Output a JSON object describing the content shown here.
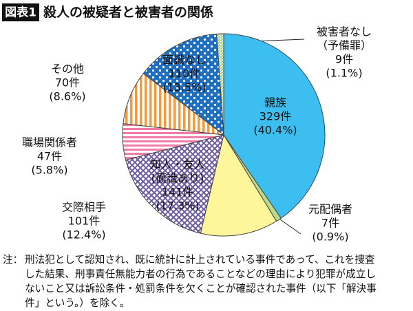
{
  "chart_data": {
    "type": "pie",
    "badge": "図表1",
    "title": "殺人の被疑者と被害者の関係",
    "categories": [
      [
        "親族"
      ],
      [
        "元配偶者"
      ],
      [
        "交際相手"
      ],
      [
        "知人・友人",
        "(面識あり)"
      ],
      [
        "職場関係者"
      ],
      [
        "その他"
      ],
      [
        "面識なし"
      ],
      [
        "被害者なし",
        "（予備罪）"
      ]
    ],
    "values": [
      329,
      7,
      101,
      141,
      47,
      70,
      110,
      9
    ],
    "value_labels": [
      "329件",
      "7件",
      "101件",
      "141件",
      "47件",
      "70件",
      "110件",
      "9件"
    ],
    "percent_labels": [
      "(40.4%)",
      "(0.9%)",
      "(12.4%)",
      "(17.3%)",
      "(5.8%)",
      "(8.6%)",
      "(13.5%)",
      "(1.1%)"
    ],
    "colors": [
      "#3cbef0",
      "#b9dc8c",
      "#fff59a",
      "#6b5aa0",
      "#f07aa8",
      "#f39a3c",
      "#1f6fc0",
      "#9cd47a"
    ],
    "patterns": [
      "solid",
      "solid",
      "solid",
      "crosshatch",
      "hstripes",
      "vstripes",
      "dots",
      "dstripes"
    ],
    "note_label": "注：",
    "note": [
      "刑法犯として認知され、既に統計に計上されている事件であって、これを捜査",
      "した結果、刑事責任無能力者の行為であることなどの理由により犯罪が成立し",
      "ないこと又は訴訟条件・処罰条件を欠くことが確認された事件（以下「解決事",
      "件」という。）を除く。"
    ]
  }
}
